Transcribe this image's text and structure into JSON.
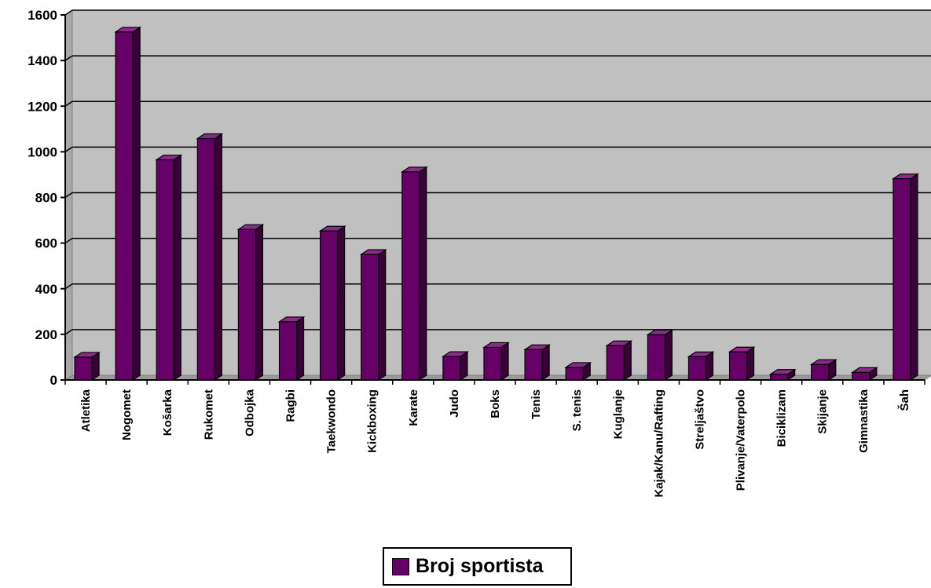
{
  "chart_data": {
    "type": "bar",
    "categories": [
      "Atletika",
      "Nogomet",
      "Košarka",
      "Rukomet",
      "Odbojka",
      "Ragbi",
      "Taekwondo",
      "Kickboxing",
      "Karate",
      "Judo",
      "Boks",
      "Tenis",
      "S. tenis",
      "Kuglanje",
      "Kajak/Kanu/Rafting",
      "Streljaštvo",
      "Plivanje/Vaterpolo",
      "Biciklizam",
      "Skijanje",
      "Gimnastika",
      "Šah"
    ],
    "series": [
      {
        "name": "Broj sportista",
        "values": [
          100,
          1525,
          965,
          1058,
          660,
          255,
          653,
          550,
          912,
          103,
          143,
          133,
          55,
          150,
          198,
          102,
          123,
          25,
          68,
          33,
          882
        ]
      }
    ],
    "ylim": [
      0,
      1600
    ],
    "yticks": [
      0,
      200,
      400,
      600,
      800,
      1000,
      1200,
      1400,
      1600
    ],
    "grid": true,
    "legend_position": "bottom",
    "colors": {
      "bar_front": "#660066",
      "bar_side": "#3a003a",
      "bar_top": "#8c2a8c",
      "plot_bg": "#c0c0c0",
      "wall_side": "#a8a8a8",
      "floor": "#9a9a9a"
    }
  }
}
